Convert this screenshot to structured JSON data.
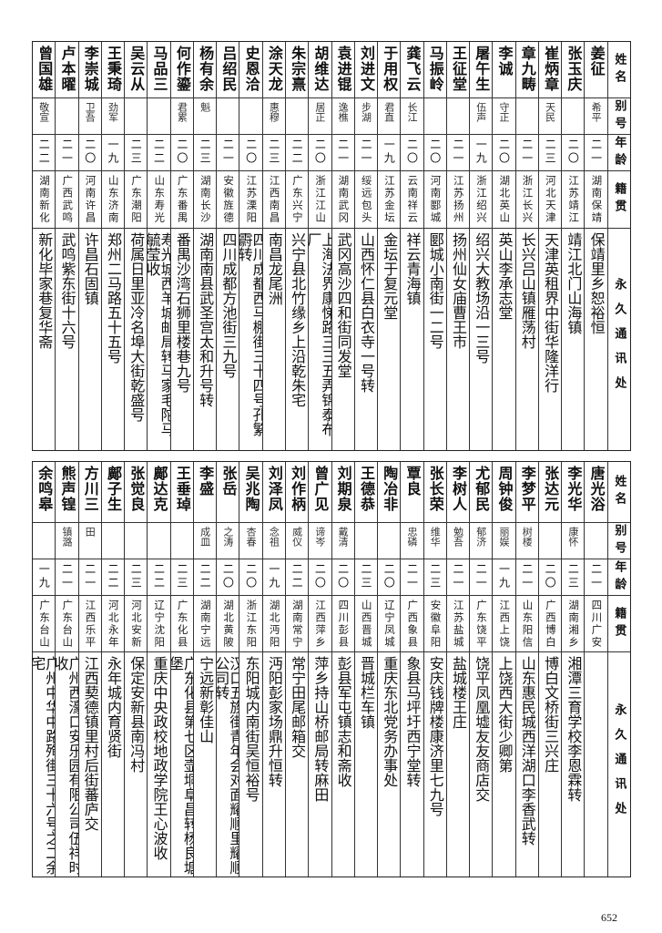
{
  "headers": {
    "name": "姓名",
    "alias": "别号",
    "age": "年龄",
    "native": "籍贯",
    "address": "永久通讯处"
  },
  "tables": [
    {
      "rows": [
        {
          "name": "姜征",
          "alias": "希平",
          "age": "二一",
          "native": "湖南保靖",
          "address": "保靖里乡恕裕恒"
        },
        {
          "name": "张玉庆",
          "alias": "",
          "age": "二〇",
          "native": "江苏靖江",
          "address": "靖江北门山海镇"
        },
        {
          "name": "崔炳章",
          "alias": "天民",
          "age": "二三",
          "native": "河北天津",
          "address": "天津英租界中街华隆洋行"
        },
        {
          "name": "章九畴",
          "alias": "",
          "age": "二一",
          "native": "浙江长兴",
          "address": "长兴吕山镇雁荡村"
        },
        {
          "name": "李诚",
          "alias": "守正",
          "age": "二〇",
          "native": "湖北英山",
          "address": "英山李承志堂"
        },
        {
          "name": "屠午生",
          "alias": "伍声",
          "age": "一九",
          "native": "浙江绍兴",
          "address": "绍兴大教场沿一三号"
        },
        {
          "name": "王征堂",
          "alias": "",
          "age": "二一",
          "native": "江苏扬州",
          "address": "扬州仙女庙曹王市"
        },
        {
          "name": "马振岭",
          "alias": "",
          "age": "二〇",
          "native": "河南郾城",
          "address": "郾城小南街一二号"
        },
        {
          "name": "龚飞云",
          "alias": "长江",
          "age": "二〇",
          "native": "云南祥云",
          "address": "祥云青海镇"
        },
        {
          "name": "于用权",
          "alias": "君直",
          "age": "一九",
          "native": "江苏金坛",
          "address": "金坛于复元堂"
        },
        {
          "name": "刘进文",
          "alias": "步湖",
          "age": "二一",
          "native": "绥远包头",
          "address": "山西怀仁县白衣寺一号转"
        },
        {
          "name": "袁进锟",
          "alias": "逸樵",
          "age": "二一",
          "native": "湖南武冈",
          "address": "武冈高沙四和街同发堂"
        },
        {
          "name": "胡维达",
          "alias": "居正",
          "age": "二〇",
          "native": "浙江江山",
          "address": "上海法界康悌路三三五弄锦泰布厂"
        },
        {
          "name": "朱宗熹",
          "alias": "",
          "age": "二二",
          "native": "广东兴宁",
          "address": "兴宁县北竹缘乡上沿乾朱宅"
        },
        {
          "name": "涂天龙",
          "alias": "惠穆",
          "age": "二三",
          "native": "江西南昌",
          "address": "南昌龙尾洲"
        },
        {
          "name": "史恩洽",
          "alias": "",
          "age": "二〇",
          "native": "江苏溧阳",
          "address": "四川成都西马棚街三十四号孔繁霨转"
        },
        {
          "name": "吕绍民",
          "alias": "",
          "age": "二一",
          "native": "安徽旌德",
          "address": "四川成都方池街三九号"
        },
        {
          "name": "杨有余",
          "alias": "魁",
          "age": "二三",
          "native": "湖南长沙",
          "address": "湖南南县武圣宫太和升号转"
        },
        {
          "name": "何作鎏",
          "alias": "君累",
          "age": "二〇",
          "native": "广东番禺",
          "address": "番禺沙湾石狮里楼巷九号"
        },
        {
          "name": "马品三",
          "alias": "",
          "age": "二二",
          "native": "山东寿光",
          "address": "寿光城西羊城邮局转马家毛陀马毓莹收"
        },
        {
          "name": "吴云从",
          "alias": "",
          "age": "二三",
          "native": "广东潮阳",
          "address": "荷属日里亚冷名埠大街乾盛号"
        },
        {
          "name": "王秉琦",
          "alias": "劲军",
          "age": "一九",
          "native": "山东济南",
          "address": "郑州二马路五十五号"
        },
        {
          "name": "李崇城",
          "alias": "卫吾",
          "age": "二〇",
          "native": "河南许昌",
          "address": "许昌石固镇"
        },
        {
          "name": "卢本曜",
          "alias": "",
          "age": "二一",
          "native": "广西武鸣",
          "address": "武鸣紫东街十六号"
        },
        {
          "name": "曾国雄",
          "alias": "敬宣",
          "age": "二二",
          "native": "湖南新化",
          "address": "新化毕家巷复华斋"
        }
      ]
    },
    {
      "rows": [
        {
          "name": "唐光浴",
          "alias": "",
          "age": "二一",
          "native": "四川广安",
          "address": ""
        },
        {
          "name": "李光华",
          "alias": "康怀",
          "age": "二三",
          "native": "湖南湘乡",
          "address": "湘潭三育学校李恩霖转"
        },
        {
          "name": "张达元",
          "alias": "",
          "age": "二〇",
          "native": "广西博白",
          "address": "博白文桥街三兴庄"
        },
        {
          "name": "李梦平",
          "alias": "树楼",
          "age": "二一",
          "native": "山东阳信",
          "address": "山东惠民城西洋湖口李香武转"
        },
        {
          "name": "周钟俊",
          "alias": "丽娱",
          "age": "一九",
          "native": "江西上饶",
          "address": "上饶西大街少卿第"
        },
        {
          "name": "尤郁民",
          "alias": "郁济",
          "age": "二一",
          "native": "广东饶平",
          "address": "饶平凤凰墟友友商店交"
        },
        {
          "name": "李树人",
          "alias": "勉吾",
          "age": "二一",
          "native": "江苏盐城",
          "address": "盐城楼王庄"
        },
        {
          "name": "张长荣",
          "alias": "维华",
          "age": "二三",
          "native": "安徽阜阳",
          "address": "安庆钱牌楼康济里七九号"
        },
        {
          "name": "覃良",
          "alias": "忠磷",
          "age": "二一",
          "native": "广西象县",
          "address": "象县马坪圩西宁堂转"
        },
        {
          "name": "陶冶非",
          "alias": "",
          "age": "二〇",
          "native": "辽宁凤城",
          "address": "重庆东北党务办事处"
        },
        {
          "name": "王德恭",
          "alias": "",
          "age": "二三",
          "native": "山西晋城",
          "address": "晋城栏车镇"
        },
        {
          "name": "刘期泉",
          "alias": "戴清",
          "age": "二〇",
          "native": "四川彭县",
          "address": "彭县军屯镇志和斋收"
        },
        {
          "name": "曾广见",
          "alias": "谛岑",
          "age": "二〇",
          "native": "江西萍乡",
          "address": "萍乡持山桥邮局转麻田"
        },
        {
          "name": "刘作柄",
          "alias": "威仪",
          "age": "二二",
          "native": "湖南常宁",
          "address": "常宁田尾邮箱交"
        },
        {
          "name": "刘泽凤",
          "alias": "念祖",
          "age": "一九",
          "native": "湖北沔阳",
          "address": "沔阳彭家场鼎升恒转"
        },
        {
          "name": "吴兆陶",
          "alias": "杏春",
          "age": "二〇",
          "native": "浙江东阳",
          "address": "东阳城内南街吴恒裕号"
        },
        {
          "name": "张岳",
          "alias": "之涛",
          "age": "二〇",
          "native": "湖北黄陂",
          "address": "汉口五族街青年会对面耀顺里耀顺公司转"
        },
        {
          "name": "李盛",
          "alias": "成皿",
          "age": "二二",
          "native": "湖南宁远",
          "address": "宁远新彰佳山"
        },
        {
          "name": "王垂琸",
          "alias": "",
          "age": "二三",
          "native": "广东化县",
          "address": "广东化县第七区壶垌阜昌转杨良塘堡"
        },
        {
          "name": "鄺达克",
          "alias": "",
          "age": "二二",
          "native": "辽宁沈阳",
          "address": "重庆中央政校地政学院王心波收"
        },
        {
          "name": "张觉良",
          "alias": "",
          "age": "二三",
          "native": "河北安新",
          "address": "保定安新县南冯村"
        },
        {
          "name": "鄺子生",
          "alias": "",
          "age": "二二",
          "native": "河北永年",
          "address": "永年城内育贤街"
        },
        {
          "name": "方川三",
          "alias": "田",
          "age": "二一",
          "native": "江西乐平",
          "address": "江西葜德镇里村后街蕃庐交"
        },
        {
          "name": "熊声锽",
          "alias": "镇潞",
          "age": "二一",
          "native": "广东台山",
          "address": "广州西濠口安乐园有限公司伍祥时收"
        },
        {
          "name": "余鸣皋",
          "alias": "",
          "age": "一九",
          "native": "广东台山",
          "address": "广州中华中路殉街三十六号之二余宅"
        }
      ]
    }
  ],
  "page_number": "652"
}
